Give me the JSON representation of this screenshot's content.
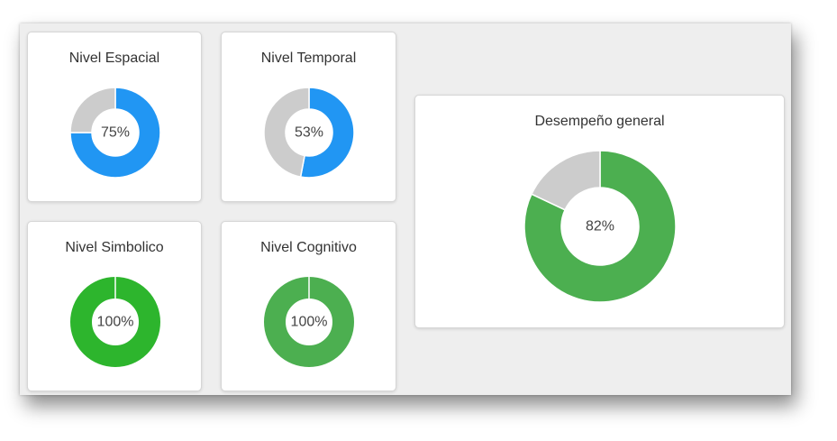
{
  "chart_data": [
    {
      "type": "pie",
      "title": "Nivel Espacial",
      "value": 75,
      "label": "75%",
      "fill_color": "#2196f3",
      "track_color": "#cccccc"
    },
    {
      "type": "pie",
      "title": "Nivel Temporal",
      "value": 53,
      "label": "53%",
      "fill_color": "#2196f3",
      "track_color": "#cccccc"
    },
    {
      "type": "pie",
      "title": "Nivel Simbolico",
      "value": 100,
      "label": "100%",
      "fill_color": "#2db52d",
      "track_color": "#cccccc"
    },
    {
      "type": "pie",
      "title": "Nivel Cognitivo",
      "value": 100,
      "label": "100%",
      "fill_color": "#4caf50",
      "track_color": "#cccccc"
    },
    {
      "type": "pie",
      "title": "Desempeño general",
      "value": 82,
      "label": "82%",
      "fill_color": "#4caf50",
      "track_color": "#cccccc"
    }
  ]
}
